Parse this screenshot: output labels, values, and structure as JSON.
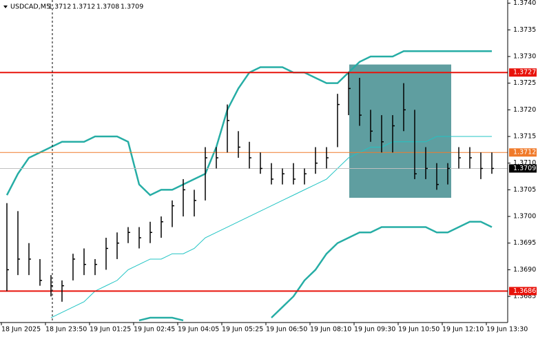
{
  "chart_data": {
    "type": "ohlc",
    "title": "USDCAD,M5",
    "header_ohlc": [
      1.3712,
      1.3712,
      1.3708,
      1.3709
    ],
    "categories": [
      "18 Jun 2025",
      null,
      null,
      null,
      "18 Jun 23:50",
      null,
      null,
      null,
      "19 Jun 01:25",
      null,
      null,
      null,
      "19 Jun 02:45",
      null,
      null,
      null,
      "19 Jun 04:05",
      null,
      null,
      null,
      "19 Jun 05:25",
      null,
      null,
      null,
      "19 Jun 06:50",
      null,
      null,
      null,
      "19 Jun 08:10",
      null,
      null,
      null,
      "19 Jun 09:30",
      null,
      null,
      null,
      "19 Jun 10:50",
      null,
      null,
      null,
      "19 Jun 12:10",
      null,
      null,
      null,
      "19 Jun 13:30"
    ],
    "high": [
      1.37025,
      1.3701,
      1.3695,
      1.3692,
      1.3689,
      1.3688,
      1.3693,
      1.3694,
      1.3692,
      1.3696,
      1.3697,
      1.3698,
      1.3698,
      1.3699,
      1.37,
      1.3703,
      1.3707,
      1.3705,
      1.3713,
      1.3713,
      1.3721,
      1.3716,
      1.3714,
      1.3712,
      1.371,
      1.3709,
      1.371,
      1.3709,
      1.3713,
      1.3713,
      1.3723,
      1.3727,
      1.3726,
      1.372,
      1.3719,
      1.3719,
      1.3725,
      1.372,
      1.3713,
      1.371,
      1.371,
      1.3713,
      1.3713,
      1.3712,
      1.3712
    ],
    "low": [
      1.3686,
      1.3689,
      1.3689,
      1.3687,
      1.3685,
      1.3684,
      1.3688,
      1.3689,
      1.3689,
      1.369,
      1.3692,
      1.3695,
      1.3694,
      1.3695,
      1.3696,
      1.3698,
      1.37,
      1.37,
      1.3703,
      1.3709,
      1.3712,
      1.3711,
      1.3709,
      1.3708,
      1.3706,
      1.3706,
      1.3706,
      1.3706,
      1.3708,
      1.3709,
      1.3713,
      1.3719,
      1.3717,
      1.3714,
      1.3712,
      1.3712,
      1.3716,
      1.3707,
      1.3707,
      1.3705,
      1.3706,
      1.3709,
      1.3709,
      1.3707,
      1.3708
    ],
    "close": [
      1.369,
      1.3692,
      1.3692,
      1.3688,
      1.3687,
      1.3687,
      1.3692,
      1.3691,
      1.3691,
      1.3694,
      1.3695,
      1.3697,
      1.3696,
      1.3697,
      1.3699,
      1.3702,
      1.3705,
      1.3703,
      1.3711,
      1.3711,
      1.3718,
      1.3713,
      1.3711,
      1.3709,
      1.3707,
      1.3708,
      1.3707,
      1.3708,
      1.371,
      1.3711,
      1.3721,
      1.3724,
      1.3719,
      1.3716,
      1.3714,
      1.3717,
      1.372,
      1.3708,
      1.3709,
      1.3706,
      1.3709,
      1.3711,
      1.3711,
      1.3709,
      1.3709
    ],
    "color": "#000000",
    "bands": [
      {
        "color": "#26ada5",
        "values": [
          1.3704,
          1.3708,
          1.3711,
          1.3712,
          1.3713,
          1.3714,
          1.3714,
          1.3714,
          1.3715,
          1.3715,
          1.3715,
          1.3714,
          1.3706,
          1.3704,
          1.3705,
          1.3705,
          1.3706,
          1.3707,
          1.3708,
          1.3713,
          1.372,
          1.3724,
          1.3727,
          1.3728,
          1.3728,
          1.3728,
          1.3727,
          1.3727,
          1.3726,
          1.3725,
          1.3725,
          1.3727,
          1.3729,
          1.373,
          1.373,
          1.373,
          1.3731,
          1.3731,
          1.3731,
          1.3731,
          1.3731,
          1.3731,
          1.3731,
          1.3731,
          1.3731
        ]
      },
      {
        "color": "#20c4c4",
        "values": [
          null,
          null,
          null,
          null,
          1.3681,
          1.3682,
          1.3683,
          1.3684,
          1.3686,
          1.3687,
          1.3688,
          1.369,
          1.3691,
          1.3692,
          1.3692,
          1.3693,
          1.3693,
          1.3694,
          1.3696,
          1.3697,
          1.3698,
          1.3699,
          1.37,
          1.3701,
          1.3702,
          1.3703,
          1.3704,
          1.3705,
          1.3706,
          1.3707,
          1.3709,
          1.3711,
          1.3712,
          1.3713,
          1.3713,
          1.3714,
          1.3714,
          1.3714,
          1.3714,
          1.3715,
          1.3715,
          1.3715,
          1.3715,
          1.3715,
          1.3715
        ]
      },
      {
        "color": "#26ada5",
        "values": [
          null,
          null,
          null,
          null,
          null,
          null,
          null,
          null,
          null,
          null,
          null,
          null,
          1.36805,
          1.3681,
          1.3681,
          1.3681,
          1.36805,
          null,
          null,
          null,
          null,
          null,
          null,
          null,
          1.3681,
          1.3683,
          1.3685,
          1.3688,
          1.369,
          1.3693,
          1.3695,
          1.3696,
          1.3697,
          1.3697,
          1.3698,
          1.3698,
          1.3698,
          1.3698,
          1.3698,
          1.3697,
          1.3697,
          1.3698,
          1.3699,
          1.3699,
          1.3698
        ]
      }
    ],
    "levels": [
      {
        "value": 1.3727,
        "color": "#e8130b"
      },
      {
        "value": 1.3712,
        "color": "#f07a2a"
      },
      {
        "value": 1.3686,
        "color": "#e8130b"
      }
    ],
    "current_price": 1.3709,
    "rectangle": {
      "top": 1.37285,
      "bottom": 1.37035,
      "color": "#5f9ea0"
    },
    "ylim": [
      1.36801,
      1.37406
    ],
    "yticks": [
      {
        "value": 1.374,
        "label": "1.3740"
      },
      1.3735,
      {
        "value": 1.373,
        "label": "1.3730"
      },
      1.3725,
      {
        "value": 1.372,
        "label": "1.3720"
      },
      1.3715,
      {
        "value": 1.371,
        "label": "1.3710"
      },
      1.3705,
      {
        "value": 1.37,
        "label": "1.3700"
      },
      1.3695,
      {
        "value": 1.369,
        "label": "1.3690"
      },
      1.3685
    ]
  }
}
